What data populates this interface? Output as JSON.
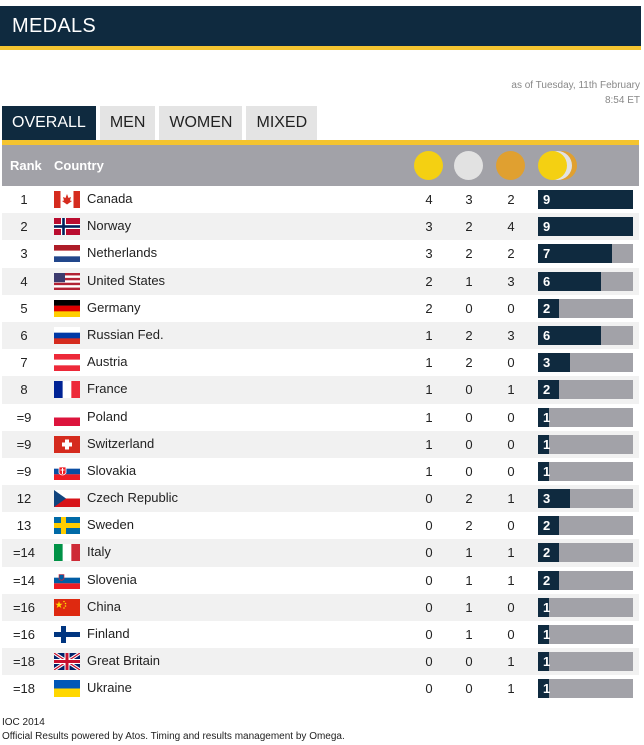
{
  "header": {
    "title": "MEDALS"
  },
  "as_of": {
    "line1": "as of Tuesday, 11th February",
    "line2": "8:54 ET"
  },
  "tabs": [
    "OVERALL",
    "MEN",
    "WOMEN",
    "MIXED"
  ],
  "active_tab": 0,
  "table_header": {
    "rank": "Rank",
    "country": "Country"
  },
  "colors": {
    "navy": "#0f2a3f",
    "gold": "#f4c430",
    "silver": "#dddddd",
    "bronze": "#e0a030",
    "grey": "#a2a2a8"
  },
  "max_total": 9,
  "rows": [
    {
      "rank": "1",
      "country": "Canada",
      "flag": "canada",
      "gold": "4",
      "silver": "3",
      "bronze": "2",
      "total": "9"
    },
    {
      "rank": "2",
      "country": "Norway",
      "flag": "norway",
      "gold": "3",
      "silver": "2",
      "bronze": "4",
      "total": "9"
    },
    {
      "rank": "3",
      "country": "Netherlands",
      "flag": "netherlands",
      "gold": "3",
      "silver": "2",
      "bronze": "2",
      "total": "7"
    },
    {
      "rank": "4",
      "country": "United States",
      "flag": "usa",
      "gold": "2",
      "silver": "1",
      "bronze": "3",
      "total": "6"
    },
    {
      "rank": "5",
      "country": "Germany",
      "flag": "germany",
      "gold": "2",
      "silver": "0",
      "bronze": "0",
      "total": "2"
    },
    {
      "rank": "6",
      "country": "Russian Fed.",
      "flag": "russia",
      "gold": "1",
      "silver": "2",
      "bronze": "3",
      "total": "6"
    },
    {
      "rank": "7",
      "country": "Austria",
      "flag": "austria",
      "gold": "1",
      "silver": "2",
      "bronze": "0",
      "total": "3"
    },
    {
      "rank": "8",
      "country": "France",
      "flag": "france",
      "gold": "1",
      "silver": "0",
      "bronze": "1",
      "total": "2"
    },
    {
      "rank": "=9",
      "country": "Poland",
      "flag": "poland",
      "gold": "1",
      "silver": "0",
      "bronze": "0",
      "total": "1"
    },
    {
      "rank": "=9",
      "country": "Switzerland",
      "flag": "switzerland",
      "gold": "1",
      "silver": "0",
      "bronze": "0",
      "total": "1"
    },
    {
      "rank": "=9",
      "country": "Slovakia",
      "flag": "slovakia",
      "gold": "1",
      "silver": "0",
      "bronze": "0",
      "total": "1"
    },
    {
      "rank": "12",
      "country": "Czech Republic",
      "flag": "czech",
      "gold": "0",
      "silver": "2",
      "bronze": "1",
      "total": "3"
    },
    {
      "rank": "13",
      "country": "Sweden",
      "flag": "sweden",
      "gold": "0",
      "silver": "2",
      "bronze": "0",
      "total": "2"
    },
    {
      "rank": "=14",
      "country": "Italy",
      "flag": "italy",
      "gold": "0",
      "silver": "1",
      "bronze": "1",
      "total": "2"
    },
    {
      "rank": "=14",
      "country": "Slovenia",
      "flag": "slovenia",
      "gold": "0",
      "silver": "1",
      "bronze": "1",
      "total": "2"
    },
    {
      "rank": "=16",
      "country": "China",
      "flag": "china",
      "gold": "0",
      "silver": "1",
      "bronze": "0",
      "total": "1"
    },
    {
      "rank": "=16",
      "country": "Finland",
      "flag": "finland",
      "gold": "0",
      "silver": "1",
      "bronze": "0",
      "total": "1"
    },
    {
      "rank": "=18",
      "country": "Great Britain",
      "flag": "gb",
      "gold": "0",
      "silver": "0",
      "bronze": "1",
      "total": "1"
    },
    {
      "rank": "=18",
      "country": "Ukraine",
      "flag": "ukraine",
      "gold": "0",
      "silver": "0",
      "bronze": "1",
      "total": "1"
    }
  ],
  "footer": {
    "line1": "IOC 2014",
    "line2": "Official Results powered by Atos. Timing and results management by Omega."
  }
}
